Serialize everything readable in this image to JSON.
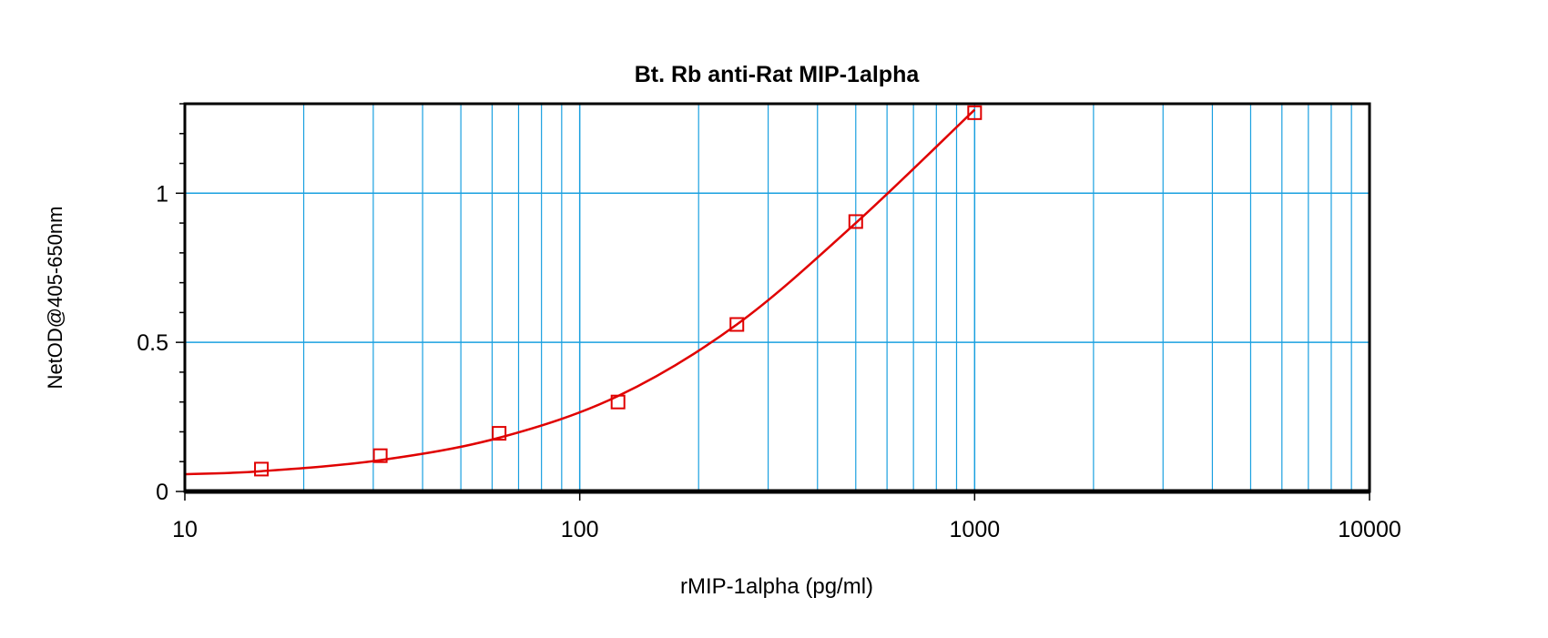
{
  "chart_data": {
    "type": "scatter",
    "title": "Bt. Rb anti-Rat MIP-1alpha",
    "xlabel": "rMIP-1alpha (pg/ml)",
    "ylabel": "NetOD@405-650nm",
    "xscale": "log",
    "xlim": [
      10,
      10000
    ],
    "ylim": [
      0,
      1.3
    ],
    "xticks": [
      "10",
      "100",
      "1000",
      "10000"
    ],
    "yticks": [
      "0",
      "0.5",
      "1"
    ],
    "grid": true,
    "colors": {
      "points": "#e00000",
      "curve": "#e00000",
      "grid": "#1aa0e0",
      "axes": "#000000"
    },
    "series": [
      {
        "marker": "open-square",
        "x": [
          15.625,
          31.25,
          62.5,
          125,
          250,
          500,
          1000
        ],
        "y": [
          0.075,
          0.12,
          0.195,
          0.3,
          0.56,
          0.905,
          1.27
        ]
      }
    ],
    "fit_curve": {
      "x": [
        10,
        15.625,
        31.25,
        62.5,
        125,
        250,
        500,
        1000
      ],
      "y": [
        0.058,
        0.068,
        0.105,
        0.18,
        0.32,
        0.56,
        0.9,
        1.28
      ]
    }
  }
}
